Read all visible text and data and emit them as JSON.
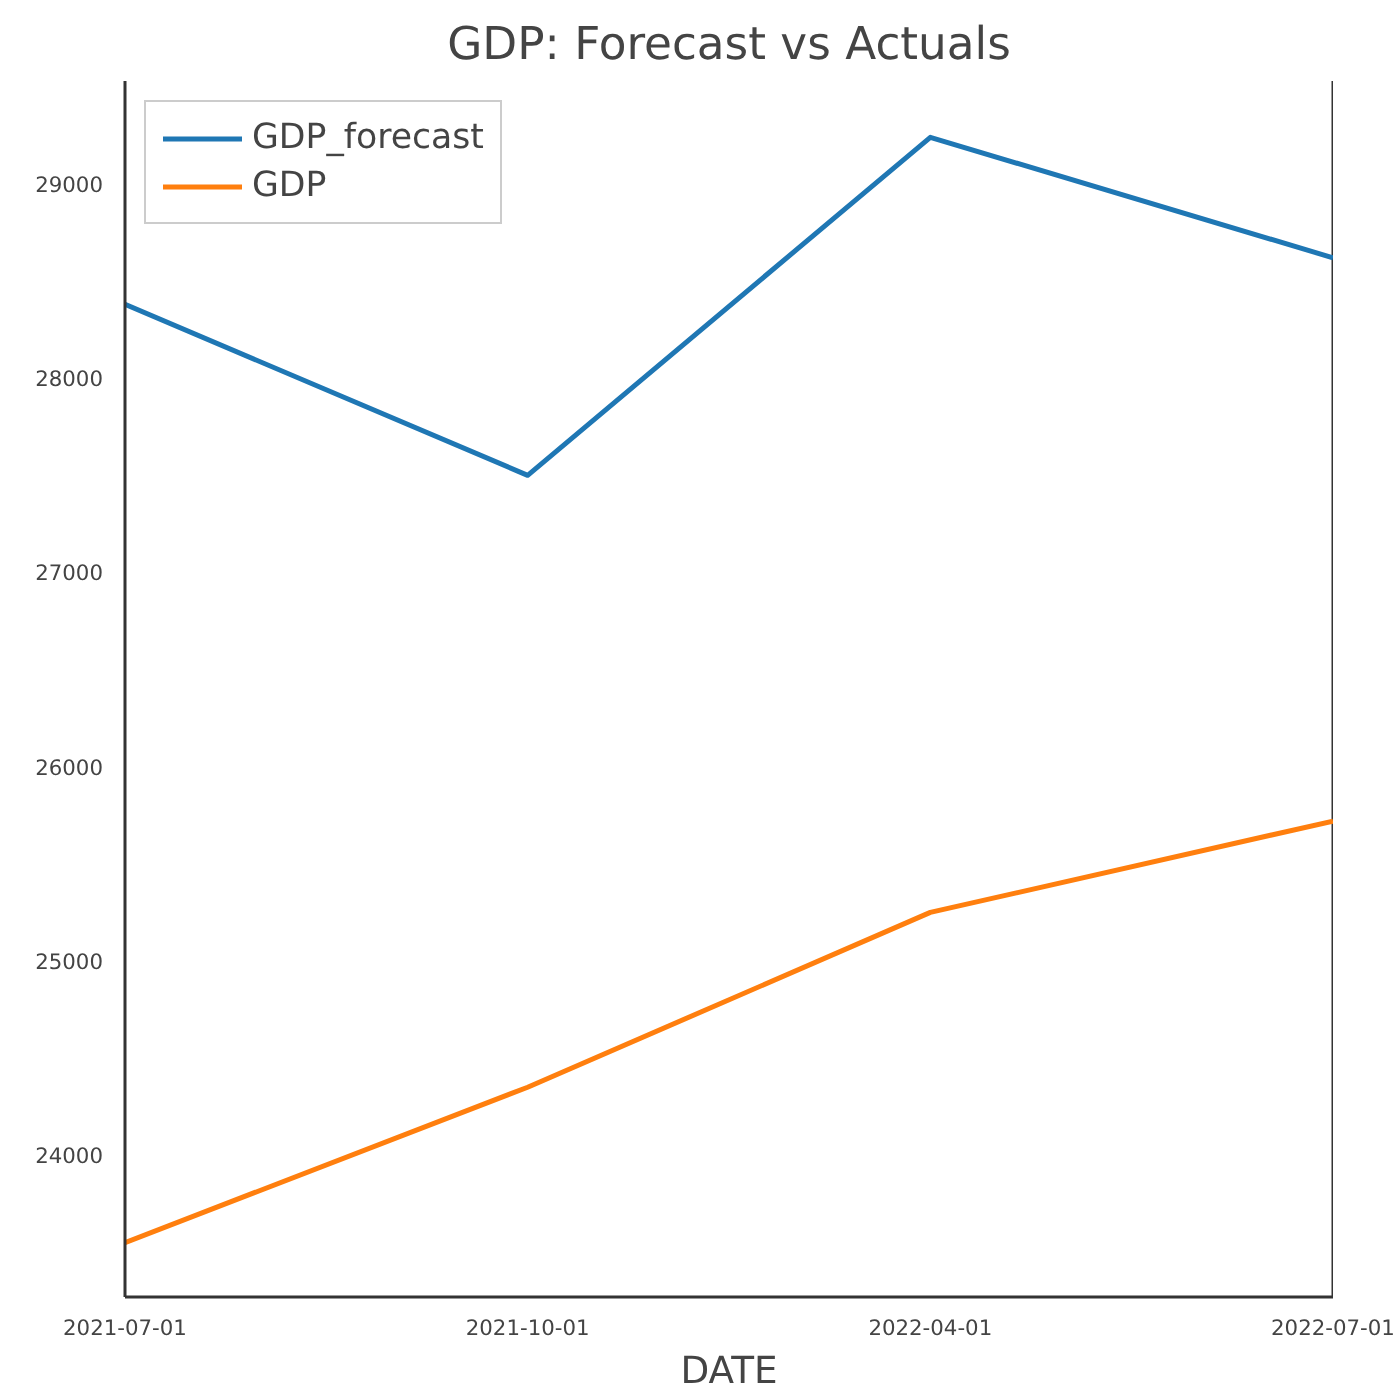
{
  "chart_data": {
    "type": "line",
    "title": "GDP: Forecast vs Actuals",
    "xlabel": "DATE",
    "categories": [
      "2021-07-01",
      "2021-10-01",
      "2022-04-01",
      "2022-07-01"
    ],
    "series": [
      {
        "name": "GDP_forecast",
        "color": "#1f77b4",
        "values": [
          28380,
          27500,
          29240,
          28620
        ]
      },
      {
        "name": "GDP",
        "color": "#ff7f0e",
        "values": [
          23550,
          24350,
          25250,
          25720
        ]
      }
    ],
    "ylim": [
      23270,
      29530
    ],
    "yticks": [
      24000,
      25000,
      26000,
      27000,
      28000,
      29000
    ],
    "grid": false,
    "legend": "top left",
    "marker": "none",
    "line_style": "solid"
  }
}
